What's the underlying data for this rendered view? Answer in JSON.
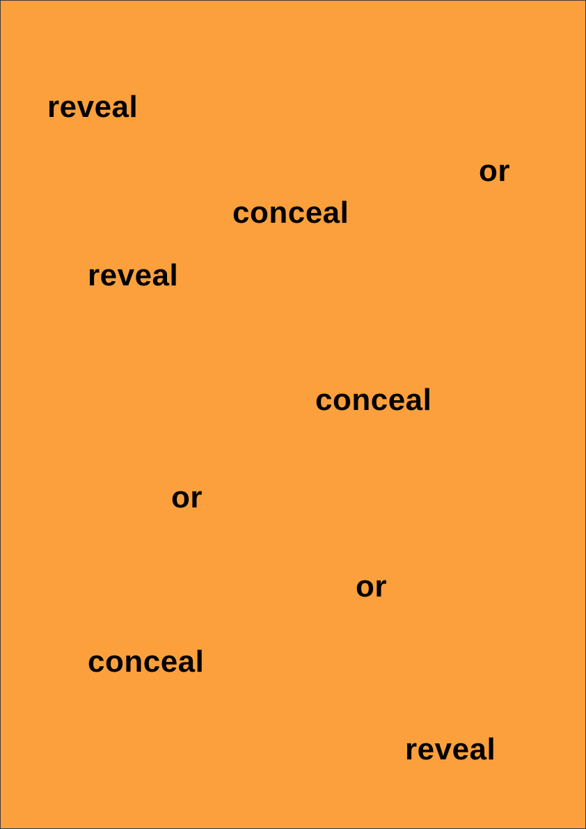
{
  "colors": {
    "background": "#FBA03C",
    "text": "#000000",
    "border": "#3a3a3a"
  },
  "words": [
    "reveal",
    "or",
    "conceal",
    "reveal",
    "conceal",
    "or",
    "or",
    "conceal",
    "reveal"
  ]
}
